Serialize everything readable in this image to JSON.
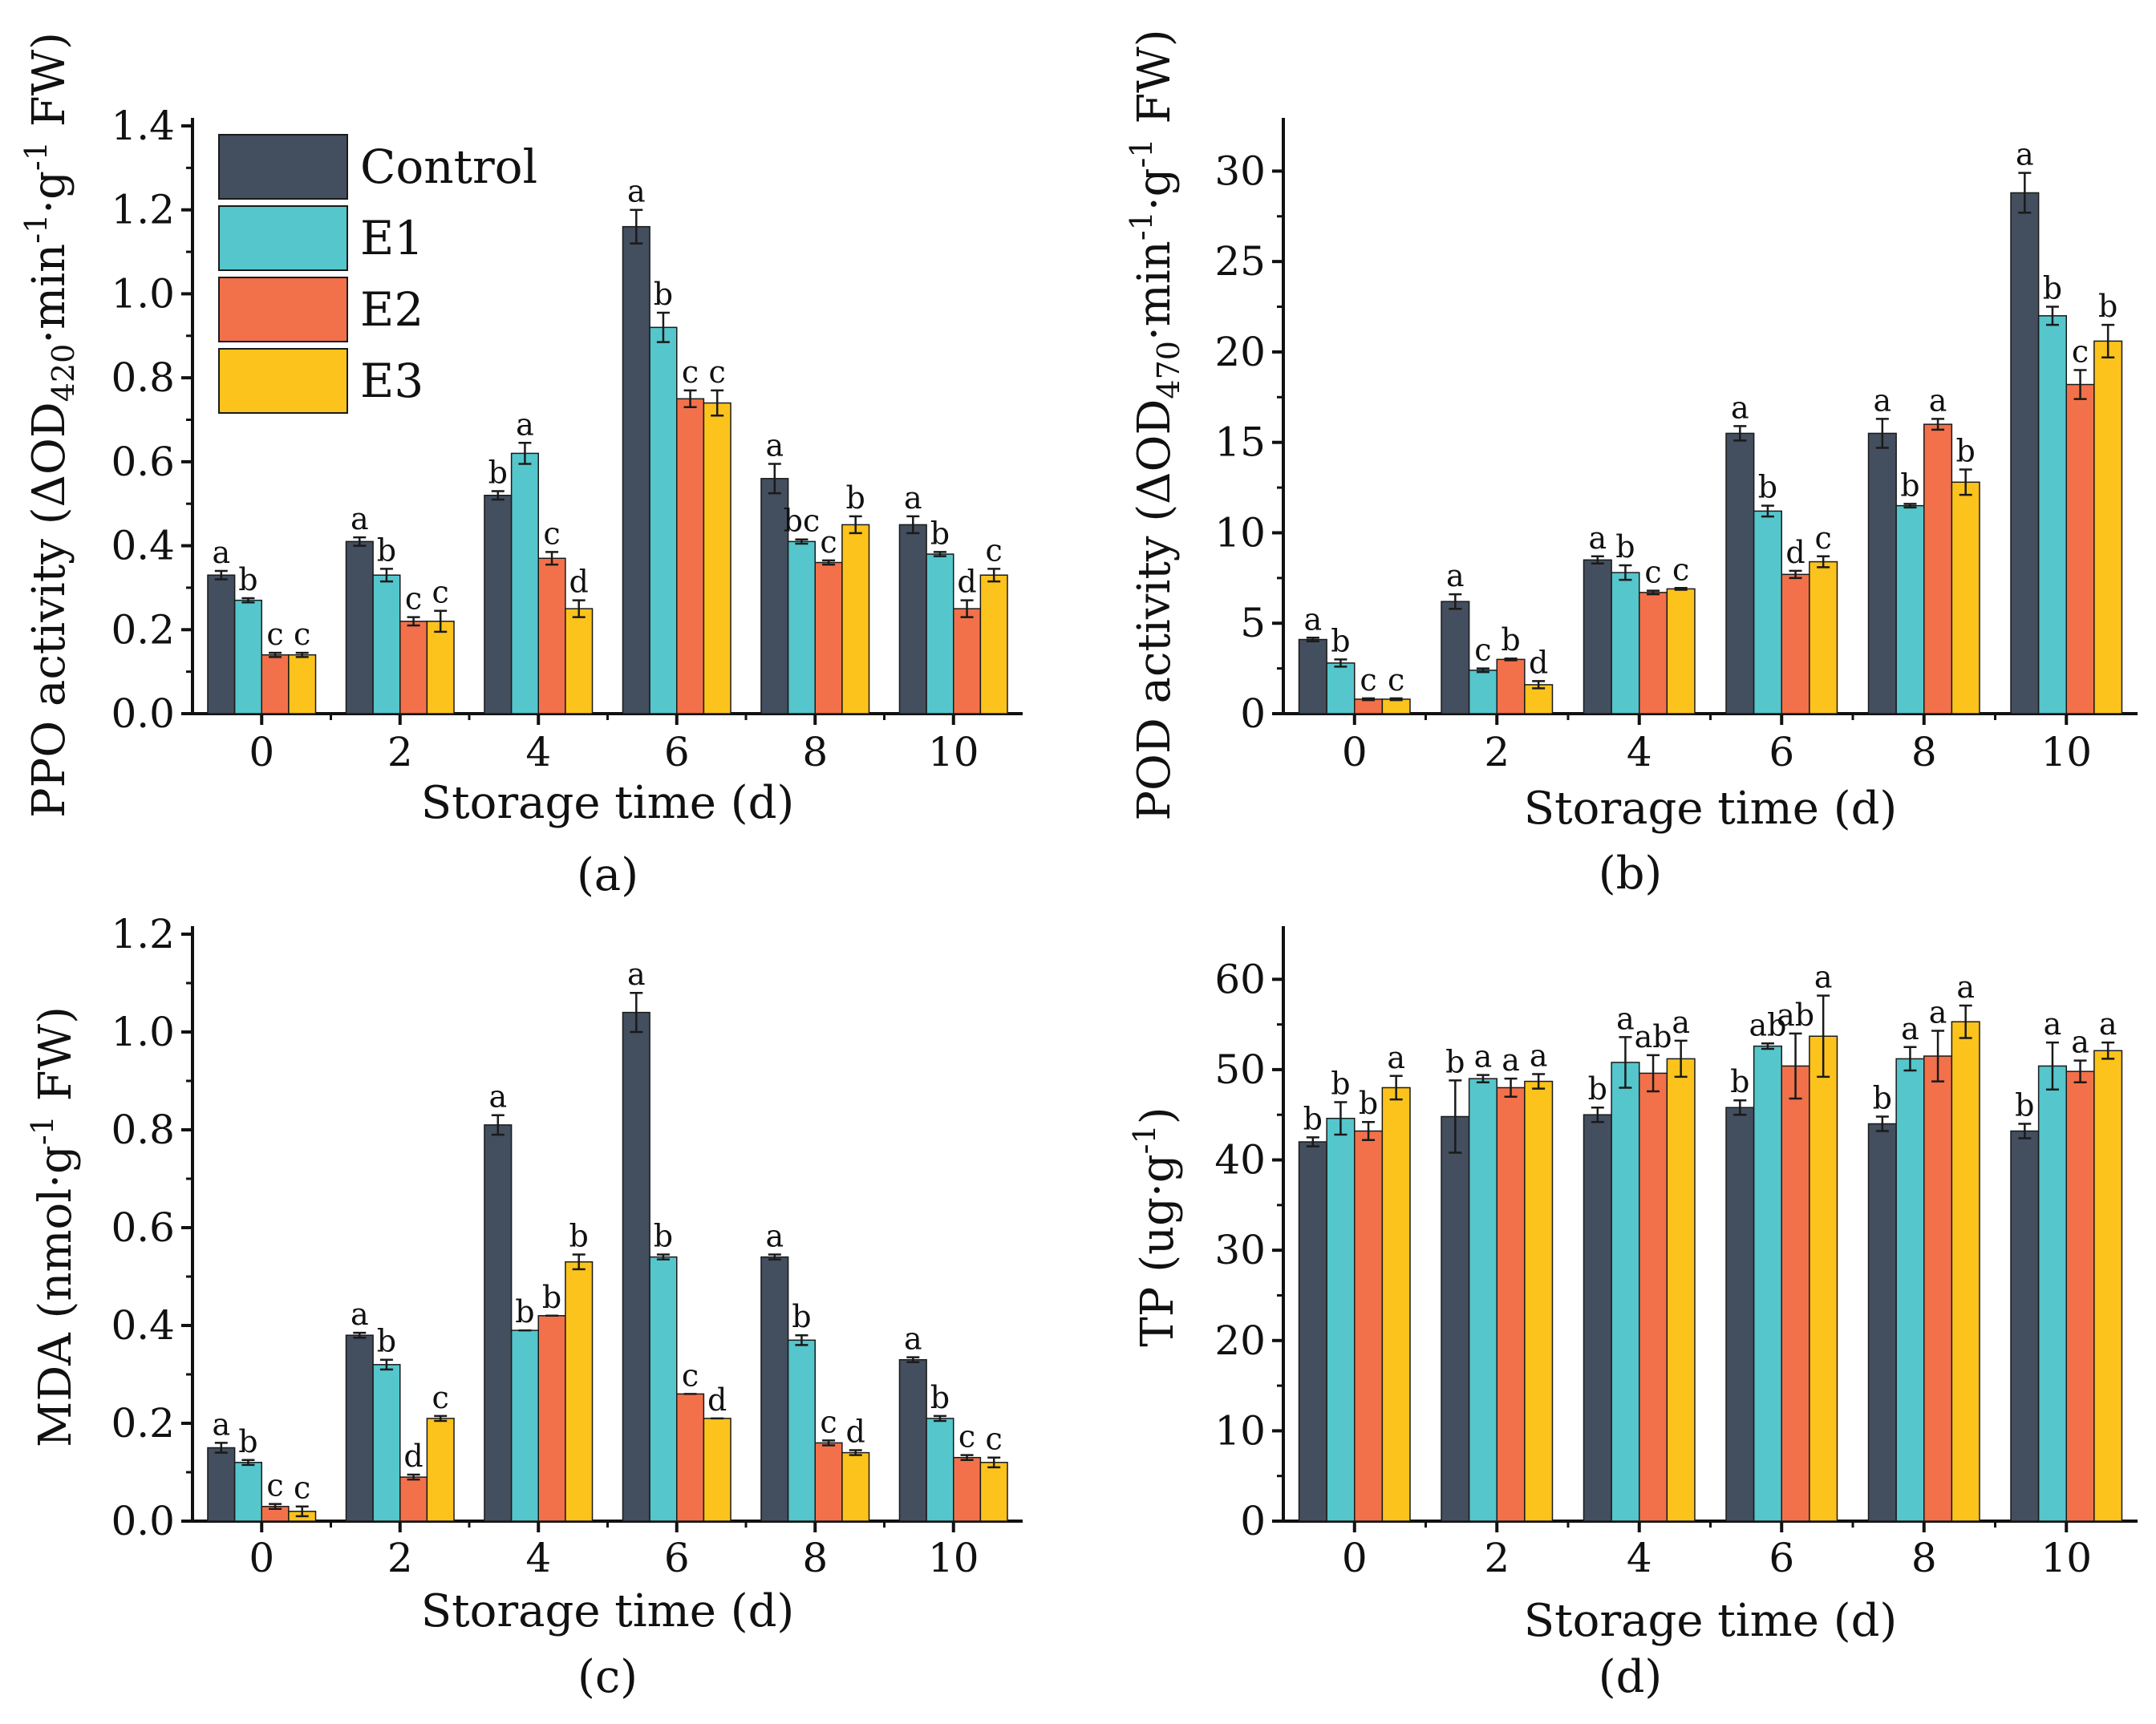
{
  "colors": {
    "Control": "#434e5e",
    "E1": "#55c6cc",
    "E2": "#f2714a",
    "E3": "#fcc31c",
    "axis": "#111111"
  },
  "legend": {
    "entries": [
      "Control",
      "E1",
      "E2",
      "E3"
    ]
  },
  "chart_data": [
    {
      "panel_label": "(a)",
      "type": "bar",
      "xlabel": "Storage time (d)",
      "ylabel_parts": {
        "main": "PPO activity (ΔOD",
        "sub": "420",
        "mid": "·min",
        "sup1": "-1",
        "mid2": "·g",
        "sup2": "-1",
        "end": " FW)"
      },
      "ylim": [
        0,
        1.4
      ],
      "yticks": [
        0.0,
        0.2,
        0.4,
        0.6,
        0.8,
        1.0,
        1.2,
        1.4
      ],
      "ytick_labels": [
        "0.0",
        "0.2",
        "0.4",
        "0.6",
        "0.8",
        "1.0",
        "1.2",
        "1.4"
      ],
      "categories": [
        "0",
        "2",
        "4",
        "6",
        "8",
        "10"
      ],
      "series": [
        {
          "name": "Control",
          "values": [
            0.33,
            0.41,
            0.52,
            1.16,
            0.56,
            0.45
          ],
          "errors": [
            0.01,
            0.01,
            0.01,
            0.04,
            0.035,
            0.02
          ],
          "labels": [
            "a",
            "a",
            "b",
            "a",
            "a",
            "a"
          ]
        },
        {
          "name": "E1",
          "values": [
            0.27,
            0.33,
            0.62,
            0.92,
            0.41,
            0.38
          ],
          "errors": [
            0.005,
            0.015,
            0.025,
            0.035,
            0.005,
            0.005
          ],
          "labels": [
            "b",
            "b",
            "a",
            "b",
            "bc",
            "b"
          ]
        },
        {
          "name": "E2",
          "values": [
            0.14,
            0.22,
            0.37,
            0.75,
            0.36,
            0.25
          ],
          "errors": [
            0.005,
            0.01,
            0.015,
            0.02,
            0.005,
            0.02
          ],
          "labels": [
            "c",
            "c",
            "c",
            "c",
            "c",
            "d"
          ]
        },
        {
          "name": "E3",
          "values": [
            0.14,
            0.22,
            0.25,
            0.74,
            0.45,
            0.33
          ],
          "errors": [
            0.005,
            0.025,
            0.02,
            0.03,
            0.02,
            0.015
          ],
          "labels": [
            "c",
            "c",
            "d",
            "c",
            "b",
            "c"
          ]
        }
      ]
    },
    {
      "panel_label": "(b)",
      "type": "bar",
      "xlabel": "Storage time (d)",
      "ylabel_parts": {
        "main": "POD activity (ΔOD",
        "sub": "470",
        "mid": "·min",
        "sup1": "-1",
        "mid2": "·g",
        "sup2": "-1",
        "end": " FW)"
      },
      "ylim": [
        0,
        32.5
      ],
      "yticks": [
        0,
        5,
        10,
        15,
        20,
        25,
        30
      ],
      "ytick_labels": [
        "0",
        "5",
        "10",
        "15",
        "20",
        "25",
        "30"
      ],
      "categories": [
        "0",
        "2",
        "4",
        "6",
        "8",
        "10"
      ],
      "series": [
        {
          "name": "Control",
          "values": [
            4.1,
            6.2,
            8.5,
            15.5,
            15.5,
            28.8
          ],
          "errors": [
            0.1,
            0.4,
            0.2,
            0.4,
            0.8,
            1.1
          ],
          "labels": [
            "a",
            "a",
            "a",
            "a",
            "a",
            "a"
          ]
        },
        {
          "name": "E1",
          "values": [
            2.8,
            2.4,
            7.8,
            11.2,
            11.5,
            22.0
          ],
          "errors": [
            0.2,
            0.1,
            0.4,
            0.3,
            0.1,
            0.5
          ],
          "labels": [
            "b",
            "c",
            "b",
            "b",
            "b",
            "b"
          ]
        },
        {
          "name": "E2",
          "values": [
            0.8,
            3.0,
            6.7,
            7.7,
            16.0,
            18.2
          ],
          "errors": [
            0.05,
            0.05,
            0.1,
            0.2,
            0.3,
            0.8
          ],
          "labels": [
            "c",
            "b",
            "c",
            "d",
            "a",
            "c"
          ]
        },
        {
          "name": "E3",
          "values": [
            0.8,
            1.6,
            6.9,
            8.4,
            12.8,
            20.6
          ],
          "errors": [
            0.05,
            0.2,
            0.05,
            0.3,
            0.7,
            0.9
          ],
          "labels": [
            "c",
            "d",
            "c",
            "c",
            "b",
            "b"
          ]
        }
      ]
    },
    {
      "panel_label": "(c)",
      "type": "bar",
      "xlabel": "Storage time (d)",
      "ylabel_parts": {
        "main": "MDA (nmol·g",
        "sup1": "-1",
        "end": " FW)"
      },
      "ylim": [
        0,
        1.2
      ],
      "yticks": [
        0.0,
        0.2,
        0.4,
        0.6,
        0.8,
        1.0,
        1.2
      ],
      "ytick_labels": [
        "0.0",
        "0.2",
        "0.4",
        "0.6",
        "0.8",
        "1.0",
        "1.2"
      ],
      "categories": [
        "0",
        "2",
        "4",
        "6",
        "8",
        "10"
      ],
      "series": [
        {
          "name": "Control",
          "values": [
            0.15,
            0.38,
            0.81,
            1.04,
            0.54,
            0.33
          ],
          "errors": [
            0.01,
            0.005,
            0.02,
            0.04,
            0.005,
            0.005
          ],
          "labels": [
            "a",
            "a",
            "a",
            "a",
            "a",
            "a"
          ]
        },
        {
          "name": "E1",
          "values": [
            0.12,
            0.32,
            0.39,
            0.54,
            0.37,
            0.21
          ],
          "errors": [
            0.005,
            0.01,
            0.0,
            0.005,
            0.01,
            0.005
          ],
          "labels": [
            "b",
            "b",
            "b",
            "b",
            "b",
            "b"
          ]
        },
        {
          "name": "E2",
          "values": [
            0.03,
            0.09,
            0.42,
            0.26,
            0.16,
            0.13
          ],
          "errors": [
            0.005,
            0.005,
            0.0,
            0.0,
            0.005,
            0.005
          ],
          "labels": [
            "c",
            "d",
            "b",
            "c",
            "c",
            "c"
          ]
        },
        {
          "name": "E3",
          "values": [
            0.02,
            0.21,
            0.53,
            0.21,
            0.14,
            0.12
          ],
          "errors": [
            0.01,
            0.005,
            0.015,
            0.0,
            0.005,
            0.01
          ],
          "labels": [
            "c",
            "c",
            "b",
            "d",
            "d",
            "c"
          ]
        }
      ]
    },
    {
      "panel_label": "(d)",
      "type": "bar",
      "xlabel": "Storage time (d)",
      "ylabel_parts": {
        "main": "TP (ug·g",
        "sup1": "-1",
        "end": ")"
      },
      "ylim": [
        0,
        65
      ],
      "yticks": [
        0,
        10,
        20,
        30,
        40,
        50,
        60
      ],
      "ytick_labels": [
        "0",
        "10",
        "20",
        "30",
        "40",
        "50",
        "60"
      ],
      "categories": [
        "0",
        "2",
        "4",
        "6",
        "8",
        "10"
      ],
      "series": [
        {
          "name": "Control",
          "values": [
            42.0,
            44.8,
            45.0,
            45.8,
            44.0,
            43.2
          ],
          "errors": [
            0.5,
            4.0,
            0.8,
            0.8,
            0.8,
            0.8
          ],
          "labels": [
            "b",
            "b",
            "b",
            "b",
            "b",
            "b"
          ]
        },
        {
          "name": "E1",
          "values": [
            44.6,
            49.0,
            50.8,
            52.6,
            51.2,
            50.4
          ],
          "errors": [
            1.8,
            0.4,
            2.8,
            0.3,
            1.3,
            2.6
          ],
          "labels": [
            "b",
            "a",
            "a",
            "ab",
            "a",
            "a"
          ]
        },
        {
          "name": "E2",
          "values": [
            43.2,
            48.0,
            49.6,
            50.4,
            51.5,
            49.8
          ],
          "errors": [
            1.0,
            1.0,
            2.0,
            3.6,
            2.8,
            1.2
          ],
          "labels": [
            "b",
            "a",
            "ab",
            "ab",
            "a",
            "a"
          ]
        },
        {
          "name": "E3",
          "values": [
            48.0,
            48.7,
            51.2,
            53.7,
            55.3,
            52.1
          ],
          "errors": [
            1.3,
            0.8,
            2.0,
            4.5,
            1.8,
            0.9
          ],
          "labels": [
            "a",
            "a",
            "a",
            "a",
            "a",
            "a"
          ]
        }
      ]
    }
  ]
}
